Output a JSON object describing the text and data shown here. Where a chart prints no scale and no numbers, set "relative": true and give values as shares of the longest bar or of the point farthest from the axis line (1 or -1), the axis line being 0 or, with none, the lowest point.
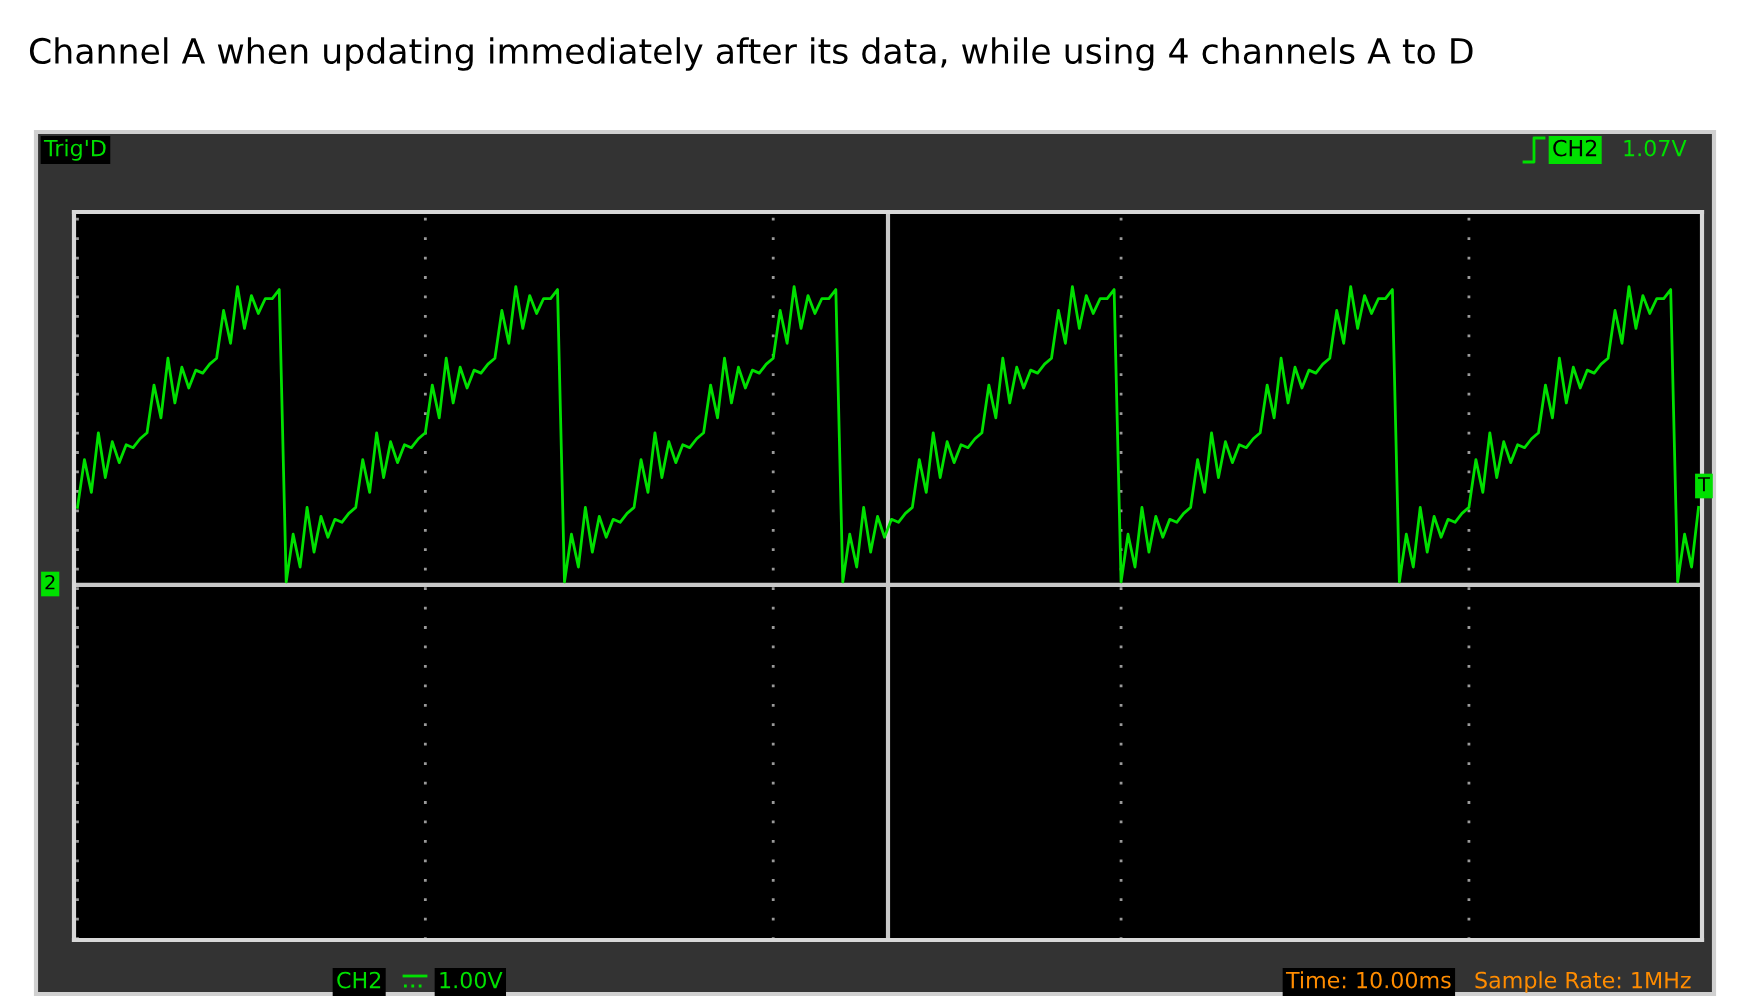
{
  "chart_data": {
    "type": "line",
    "relative": true,
    "title": "Channel A when updating immediately after its data, while using 4 channels A to D",
    "categories": [
      null,
      null,
      null,
      null,
      null,
      null,
      null,
      null,
      null,
      null,
      null,
      null,
      null,
      null,
      null,
      null,
      null,
      null,
      null,
      null,
      null,
      null,
      null,
      null,
      null,
      null,
      null,
      null,
      null,
      null,
      null,
      null,
      null,
      null,
      null,
      null,
      null,
      null,
      null,
      null,
      null,
      null,
      null,
      null,
      null,
      null,
      null,
      null,
      null,
      null,
      null,
      null,
      null,
      null,
      null,
      null,
      null,
      null,
      null,
      null,
      null,
      null,
      null,
      null,
      null,
      null,
      null,
      null,
      null,
      null,
      null,
      null,
      null,
      null,
      null,
      null,
      null,
      null,
      null,
      null,
      null,
      null,
      null,
      null,
      null,
      null,
      null,
      null,
      null,
      null,
      null,
      null,
      null,
      null,
      null,
      null,
      null,
      null,
      null,
      null,
      null,
      null,
      null,
      null,
      null,
      null,
      null,
      null,
      null,
      null,
      null,
      null,
      null,
      null,
      null,
      null,
      null,
      null,
      null,
      null,
      null,
      null,
      null,
      null,
      null,
      null,
      null,
      null,
      null,
      null,
      null,
      null,
      null,
      null,
      null,
      null,
      null,
      null,
      null,
      null,
      null,
      null,
      null,
      null,
      null,
      null,
      null,
      null,
      null,
      null,
      null,
      null,
      null,
      null,
      null,
      null,
      null,
      null,
      null,
      null,
      null,
      null,
      null,
      null,
      null,
      null,
      null,
      null,
      null,
      null,
      null,
      null,
      null,
      null,
      null,
      null,
      null,
      null,
      null,
      null,
      null,
      null,
      null,
      null,
      null,
      null,
      null,
      null,
      null,
      null,
      null,
      null,
      null,
      null,
      null,
      null,
      null,
      null,
      null,
      null,
      null,
      null,
      null,
      null,
      null,
      null,
      null,
      null,
      null,
      null,
      null,
      null,
      null,
      null,
      null,
      null,
      null,
      null,
      null,
      null,
      null,
      null,
      null,
      null,
      null,
      null,
      null,
      null,
      null,
      null,
      null,
      null,
      null,
      null
    ],
    "series": [
      {
        "color": "#00e000",
        "values": [
          0.26,
          0.42,
          0.31,
          0.51,
          0.36,
          0.48,
          0.41,
          0.47,
          0.46,
          0.49,
          0.51,
          0.67,
          0.56,
          0.76,
          0.61,
          0.73,
          0.66,
          0.72,
          0.71,
          0.74,
          0.76,
          0.92,
          0.81,
          1.0,
          0.86,
          0.97,
          0.91,
          0.96,
          0.96,
          0.99,
          0.01,
          0.17,
          0.06,
          0.26,
          0.11,
          0.23,
          0.16,
          0.22,
          0.21,
          0.24,
          0.26,
          0.42,
          0.31,
          0.51,
          0.36,
          0.48,
          0.41,
          0.47,
          0.46,
          0.49,
          0.51,
          0.67,
          0.56,
          0.76,
          0.61,
          0.73,
          0.66,
          0.72,
          0.71,
          0.74,
          0.76,
          0.92,
          0.81,
          1.0,
          0.86,
          0.97,
          0.91,
          0.96,
          0.96,
          0.99,
          0.01,
          0.17,
          0.06,
          0.26,
          0.11,
          0.23,
          0.16,
          0.22,
          0.21,
          0.24,
          0.26,
          0.42,
          0.31,
          0.51,
          0.36,
          0.48,
          0.41,
          0.47,
          0.46,
          0.49,
          0.51,
          0.67,
          0.56,
          0.76,
          0.61,
          0.73,
          0.66,
          0.72,
          0.71,
          0.74,
          0.76,
          0.92,
          0.81,
          1.0,
          0.86,
          0.97,
          0.91,
          0.96,
          0.96,
          0.99,
          0.01,
          0.17,
          0.06,
          0.26,
          0.11,
          0.23,
          0.16,
          0.22,
          0.21,
          0.24,
          0.26,
          0.42,
          0.31,
          0.51,
          0.36,
          0.48,
          0.41,
          0.47,
          0.46,
          0.49,
          0.51,
          0.67,
          0.56,
          0.76,
          0.61,
          0.73,
          0.66,
          0.72,
          0.71,
          0.74,
          0.76,
          0.92,
          0.81,
          1.0,
          0.86,
          0.97,
          0.91,
          0.96,
          0.96,
          0.99,
          0.01,
          0.17,
          0.06,
          0.26,
          0.11,
          0.23,
          0.16,
          0.22,
          0.21,
          0.24,
          0.26,
          0.42,
          0.31,
          0.51,
          0.36,
          0.48,
          0.41,
          0.47,
          0.46,
          0.49,
          0.51,
          0.67,
          0.56,
          0.76,
          0.61,
          0.73,
          0.66,
          0.72,
          0.71,
          0.74,
          0.76,
          0.92,
          0.81,
          1.0,
          0.86,
          0.97,
          0.91,
          0.96,
          0.96,
          0.99,
          0.01,
          0.17,
          0.06,
          0.26,
          0.11,
          0.23,
          0.16,
          0.22,
          0.21,
          0.24,
          0.26,
          0.42,
          0.31,
          0.51,
          0.36,
          0.48,
          0.41,
          0.47,
          0.46,
          0.49,
          0.51,
          0.67,
          0.56,
          0.76,
          0.61,
          0.73,
          0.66,
          0.72,
          0.71,
          0.74,
          0.76,
          0.92,
          0.81,
          1.0,
          0.86,
          0.97,
          0.91,
          0.96,
          0.96,
          0.99,
          0.01,
          0.17,
          0.06,
          0.26
        ]
      }
    ],
    "grid": true,
    "annotations": [
      "Trig'D",
      "CH2",
      "1.07V",
      "CH2",
      "1.00V",
      "Time: 10.00ms",
      "Sample Rate: 1MHz",
      "2",
      "T"
    ]
  }
}
